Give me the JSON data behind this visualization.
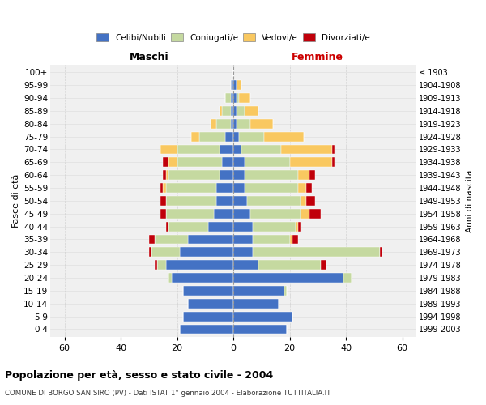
{
  "age_groups": [
    "0-4",
    "5-9",
    "10-14",
    "15-19",
    "20-24",
    "25-29",
    "30-34",
    "35-39",
    "40-44",
    "45-49",
    "50-54",
    "55-59",
    "60-64",
    "65-69",
    "70-74",
    "75-79",
    "80-84",
    "85-89",
    "90-94",
    "95-99",
    "100+"
  ],
  "birth_years": [
    "1999-2003",
    "1994-1998",
    "1989-1993",
    "1984-1988",
    "1979-1983",
    "1974-1978",
    "1969-1973",
    "1964-1968",
    "1959-1963",
    "1954-1958",
    "1949-1953",
    "1944-1948",
    "1939-1943",
    "1934-1938",
    "1929-1933",
    "1924-1928",
    "1919-1923",
    "1914-1918",
    "1909-1913",
    "1904-1908",
    "≤ 1903"
  ],
  "maschi": {
    "celibi": [
      19,
      18,
      16,
      18,
      22,
      24,
      19,
      16,
      9,
      7,
      6,
      6,
      5,
      4,
      5,
      3,
      1,
      1,
      1,
      1,
      0
    ],
    "coniugati": [
      0,
      0,
      0,
      0,
      1,
      3,
      10,
      12,
      14,
      17,
      18,
      18,
      18,
      16,
      15,
      9,
      5,
      3,
      2,
      0,
      0
    ],
    "vedovi": [
      0,
      0,
      0,
      0,
      0,
      0,
      0,
      0,
      0,
      0,
      0,
      1,
      1,
      3,
      6,
      3,
      2,
      1,
      0,
      0,
      0
    ],
    "divorziati": [
      0,
      0,
      0,
      0,
      0,
      1,
      1,
      2,
      1,
      2,
      2,
      1,
      1,
      2,
      0,
      0,
      0,
      0,
      0,
      0,
      0
    ]
  },
  "femmine": {
    "nubili": [
      19,
      21,
      16,
      18,
      39,
      9,
      7,
      7,
      7,
      6,
      5,
      4,
      4,
      4,
      3,
      2,
      1,
      1,
      1,
      1,
      0
    ],
    "coniugate": [
      0,
      0,
      0,
      1,
      3,
      22,
      45,
      13,
      15,
      18,
      19,
      19,
      19,
      16,
      14,
      9,
      5,
      3,
      1,
      0,
      0
    ],
    "vedove": [
      0,
      0,
      0,
      0,
      0,
      0,
      0,
      1,
      1,
      3,
      2,
      3,
      4,
      15,
      18,
      14,
      8,
      5,
      4,
      2,
      0
    ],
    "divorziate": [
      0,
      0,
      0,
      0,
      0,
      2,
      1,
      2,
      1,
      4,
      3,
      2,
      2,
      1,
      1,
      0,
      0,
      0,
      0,
      0,
      0
    ]
  },
  "colors": {
    "celibi": "#4472C4",
    "coniugati": "#C5D9A0",
    "vedovi": "#F9C860",
    "divorziati": "#C0000A"
  },
  "title": "Popolazione per età, sesso e stato civile - 2004",
  "subtitle": "COMUNE DI BORGO SAN SIRO (PV) - Dati ISTAT 1° gennaio 2004 - Elaborazione TUTTITALIA.IT",
  "ylabel": "Fasce di età",
  "ylabel2": "Anni di nascita",
  "xlabel_left": "Maschi",
  "xlabel_right": "Femmine",
  "xlim": 65,
  "bg_color": "#FFFFFF",
  "plot_bg": "#F0F0F0",
  "grid_color": "#CCCCCC"
}
